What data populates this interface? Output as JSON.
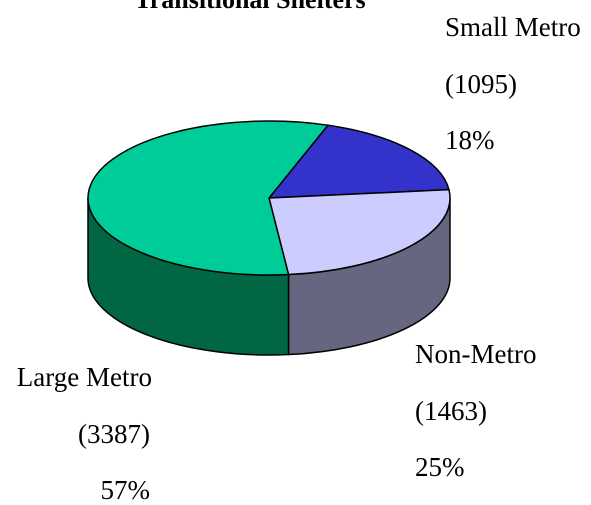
{
  "chart_data": {
    "type": "pie3d",
    "title": "Transitional Shelters",
    "categories": [
      "Small Metro",
      "Non-Metro",
      "Large Metro"
    ],
    "counts": [
      1095,
      1463,
      3387
    ],
    "count_labels": [
      "(1095)",
      "(1463)",
      "(3387)"
    ],
    "values": [
      18,
      25,
      57
    ],
    "value_labels": [
      "18%",
      "25%",
      "57%"
    ],
    "colors": [
      "#3333cc",
      "#ccccff",
      "#00cc99"
    ],
    "side_colors": [
      "#1a1a80",
      "#666680",
      "#006644"
    ]
  }
}
